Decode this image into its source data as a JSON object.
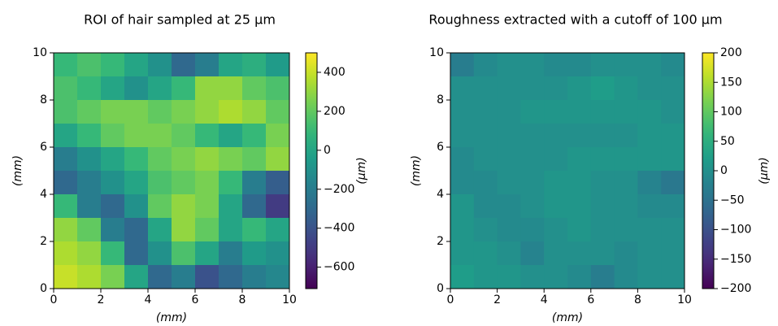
{
  "chart_data": [
    {
      "type": "heatmap",
      "title": "ROI of hair sampled at 25 μm",
      "xlabel": "(mm)",
      "ylabel": "(mm)",
      "colorbar_label": "(μm)",
      "colormap": "viridis",
      "xlim": [
        0,
        10
      ],
      "ylim": [
        0,
        10
      ],
      "xticks": [
        0,
        2,
        4,
        6,
        8,
        10
      ],
      "yticks": [
        0,
        2,
        4,
        6,
        8,
        10
      ],
      "zlim": [
        -710,
        500
      ],
      "zticks": [
        {
          "value": -600,
          "label": "−600"
        },
        {
          "value": -400,
          "label": "−400"
        },
        {
          "value": -200,
          "label": "−200"
        },
        0,
        200,
        400
      ],
      "z": [
        [
          100,
          150,
          100,
          0,
          -100,
          -300,
          -200,
          0,
          50,
          -50
        ],
        [
          150,
          100,
          0,
          -100,
          0,
          100,
          300,
          300,
          200,
          150
        ],
        [
          150,
          200,
          250,
          250,
          200,
          250,
          300,
          350,
          300,
          200
        ],
        [
          0,
          100,
          200,
          250,
          250,
          200,
          100,
          0,
          100,
          250
        ],
        [
          -200,
          -100,
          0,
          100,
          200,
          250,
          300,
          250,
          200,
          300
        ],
        [
          -300,
          -200,
          -100,
          0,
          150,
          200,
          250,
          100,
          -200,
          -350
        ],
        [
          100,
          -200,
          -300,
          -100,
          200,
          300,
          250,
          0,
          -300,
          -500
        ],
        [
          300,
          200,
          -200,
          -300,
          0,
          300,
          200,
          0,
          100,
          0
        ],
        [
          350,
          300,
          100,
          -300,
          -100,
          150,
          0,
          -200,
          -50,
          -100
        ],
        [
          400,
          350,
          250,
          0,
          -300,
          -200,
          -400,
          -300,
          -200,
          -150
        ]
      ]
    },
    {
      "type": "heatmap",
      "title": "Roughness extracted with a cutoff of 100 μm",
      "xlabel": "(mm)",
      "ylabel": "(mm)",
      "colorbar_label": "(μm)",
      "colormap": "viridis",
      "xlim": [
        0,
        10
      ],
      "ylim": [
        0,
        10
      ],
      "xticks": [
        0,
        2,
        4,
        6,
        8,
        10
      ],
      "yticks": [
        0,
        2,
        4,
        6,
        8,
        10
      ],
      "zlim": [
        -200,
        200
      ],
      "zticks": [
        {
          "value": -200,
          "label": "−200"
        },
        {
          "value": -150,
          "label": "−150"
        },
        {
          "value": -100,
          "label": "−100"
        },
        {
          "value": -50,
          "label": "−50"
        },
        0,
        50,
        100,
        150,
        200
      ],
      "z": [
        [
          -30,
          -10,
          0,
          0,
          -10,
          -10,
          0,
          0,
          0,
          -10
        ],
        [
          0,
          0,
          0,
          0,
          0,
          10,
          20,
          10,
          0,
          0
        ],
        [
          0,
          0,
          0,
          10,
          10,
          10,
          10,
          10,
          10,
          0
        ],
        [
          0,
          0,
          0,
          0,
          0,
          0,
          0,
          0,
          10,
          10
        ],
        [
          -10,
          0,
          0,
          0,
          0,
          10,
          10,
          10,
          10,
          10
        ],
        [
          -10,
          -10,
          0,
          0,
          10,
          10,
          0,
          0,
          -20,
          -40
        ],
        [
          10,
          -10,
          -10,
          0,
          10,
          10,
          0,
          0,
          -10,
          -10
        ],
        [
          10,
          0,
          -10,
          -10,
          0,
          10,
          0,
          0,
          0,
          0
        ],
        [
          10,
          10,
          0,
          -20,
          0,
          0,
          0,
          -10,
          0,
          0
        ],
        [
          20,
          10,
          10,
          0,
          0,
          -10,
          -30,
          -10,
          0,
          0
        ]
      ]
    }
  ]
}
